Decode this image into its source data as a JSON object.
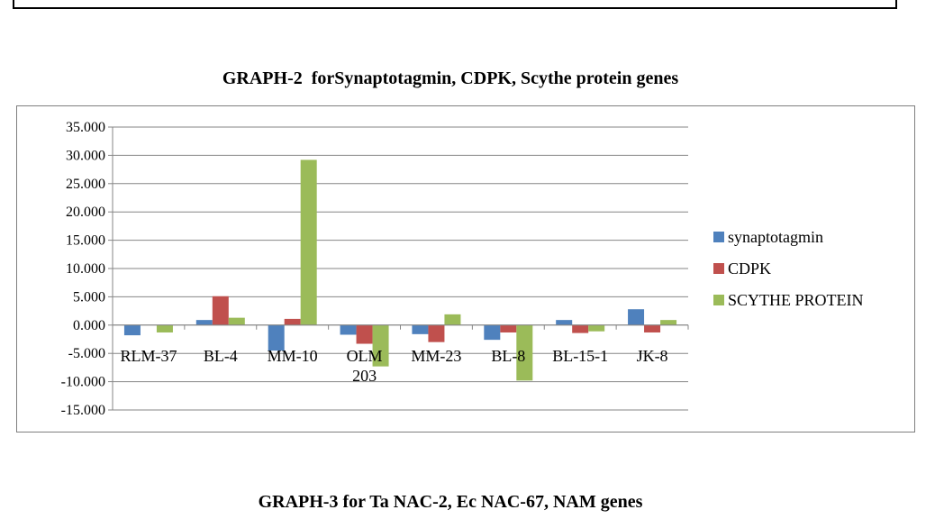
{
  "headings": {
    "graph2": "GRAPH-2  forSynaptotagmin, CDPK, Scythe protein genes",
    "graph3": "GRAPH-3 for Ta NAC-2, Ec NAC-67, NAM genes"
  },
  "colors": {
    "synaptotagmin": "#4F81BD",
    "CDPK": "#C0504D",
    "SCYTHE PROTEIN": "#9BBB59",
    "gridline": "#868686"
  },
  "chart_data": {
    "type": "bar",
    "title": "GRAPH-2  forSynaptotagmin, CDPK, Scythe protein genes",
    "categories": [
      "RLM-37",
      "BL-4",
      "MM-10",
      "OLM\n203",
      "MM-23",
      "BL-8",
      "BL-15-1",
      "JK-8"
    ],
    "series": [
      {
        "name": "synaptotagmin",
        "values": [
          -1.8,
          0.9,
          -4.5,
          -1.7,
          -1.6,
          -2.6,
          0.9,
          2.8
        ]
      },
      {
        "name": "CDPK",
        "values": [
          0.0,
          5.1,
          1.1,
          -3.3,
          -3.0,
          -1.3,
          -1.4,
          -1.3
        ]
      },
      {
        "name": "SCYTHE PROTEIN",
        "values": [
          -1.3,
          1.3,
          29.2,
          -7.3,
          1.9,
          -9.8,
          -1.1,
          0.9
        ]
      }
    ],
    "ylim": [
      -15,
      35
    ],
    "yticks": [
      "35.000",
      "30.000",
      "25.000",
      "20.000",
      "15.000",
      "10.000",
      "5.000",
      "0.000",
      "-5.000",
      "-10.000",
      "-15.000"
    ],
    "xlabel": "",
    "ylabel": "",
    "grid": true,
    "legend": "right"
  }
}
